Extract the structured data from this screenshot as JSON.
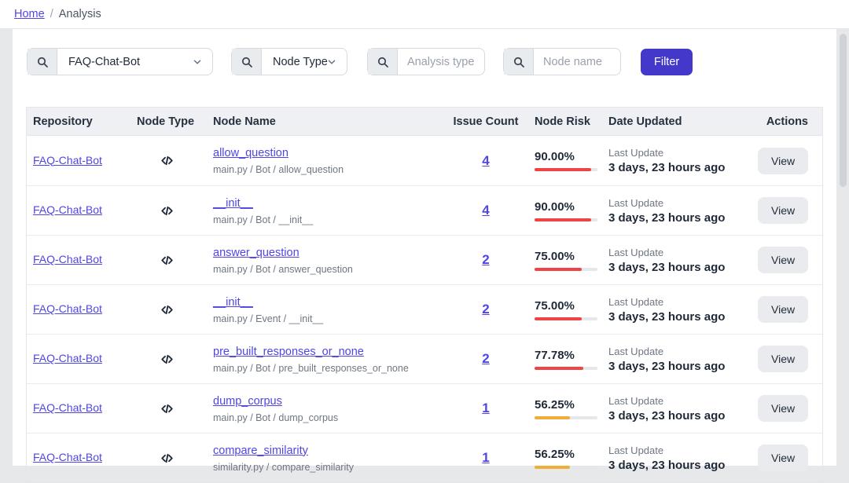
{
  "breadcrumb": {
    "home": "Home",
    "separator": "/",
    "current": "Analysis"
  },
  "filters": {
    "repo_select": {
      "value": "FAQ-Chat-Bot"
    },
    "node_type_select": {
      "value": "Node Type"
    },
    "analysis_type_input": {
      "placeholder": "Analysis type"
    },
    "node_name_input": {
      "placeholder": "Node name"
    },
    "filter_button": "Filter"
  },
  "table": {
    "columns": [
      "Repository",
      "Node Type",
      "Node Name",
      "Issue Count",
      "Node Risk",
      "Date Updated",
      "Actions"
    ],
    "last_update_label": "Last Update",
    "view_label": "View",
    "node_type_icon": "code-icon",
    "rows": [
      {
        "repo": "FAQ-Chat-Bot",
        "name": "allow_question",
        "path": "main.py / Bot / allow_question",
        "issues": "4",
        "risk": "90.00%",
        "risk_color": "#ef4444",
        "updated": "3 days, 23 hours ago"
      },
      {
        "repo": "FAQ-Chat-Bot",
        "name": "__init__",
        "path": "main.py / Bot / __init__",
        "issues": "4",
        "risk": "90.00%",
        "risk_color": "#ef4444",
        "updated": "3 days, 23 hours ago"
      },
      {
        "repo": "FAQ-Chat-Bot",
        "name": "answer_question",
        "path": "main.py / Bot / answer_question",
        "issues": "2",
        "risk": "75.00%",
        "risk_color": "#ef4444",
        "updated": "3 days, 23 hours ago"
      },
      {
        "repo": "FAQ-Chat-Bot",
        "name": "__init__",
        "path": "main.py / Event / __init__",
        "issues": "2",
        "risk": "75.00%",
        "risk_color": "#ef4444",
        "updated": "3 days, 23 hours ago"
      },
      {
        "repo": "FAQ-Chat-Bot",
        "name": "pre_built_responses_or_none",
        "path": "main.py / Bot / pre_built_responses_or_none",
        "issues": "2",
        "risk": "77.78%",
        "risk_color": "#ef4444",
        "updated": "3 days, 23 hours ago"
      },
      {
        "repo": "FAQ-Chat-Bot",
        "name": "dump_corpus",
        "path": "main.py / Bot / dump_corpus",
        "issues": "1",
        "risk": "56.25%",
        "risk_color": "#f0ad3a",
        "updated": "3 days, 23 hours ago"
      },
      {
        "repo": "FAQ-Chat-Bot",
        "name": "compare_similarity",
        "path": "similarity.py / compare_similarity",
        "issues": "1",
        "risk": "56.25%",
        "risk_color": "#f0ad3a",
        "updated": "3 days, 23 hours ago"
      }
    ]
  },
  "colors": {
    "accent_button": "#4338ca",
    "link": "#4f46e5",
    "risk_high": "#ef4444",
    "risk_medium": "#f0ad3a"
  }
}
